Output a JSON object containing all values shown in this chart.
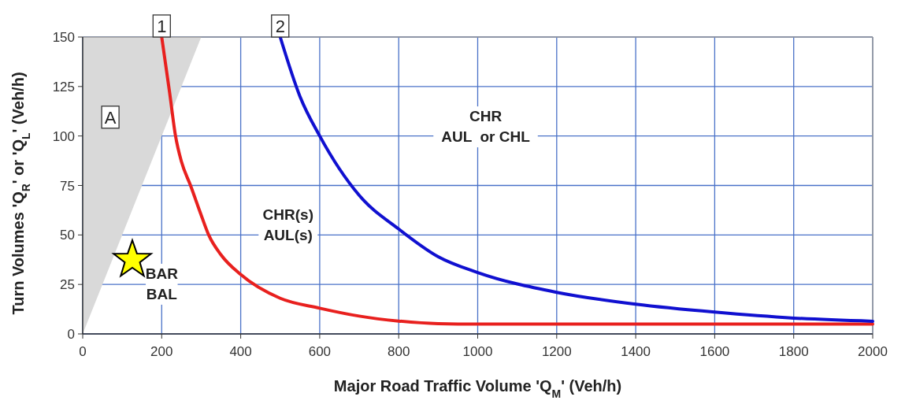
{
  "chart_data": {
    "type": "line",
    "xlabel": "Major Road Traffic Volume 'Q$_{M}$' (Veh/h)",
    "ylabel": "Turn Volumes 'Q$_{R}$' or 'Q$_{L}$' (Veh/h)",
    "xlim": [
      0,
      2000
    ],
    "ylim": [
      0,
      150
    ],
    "xticks": [
      0,
      200,
      400,
      600,
      800,
      1000,
      1200,
      1400,
      1600,
      1800,
      2000
    ],
    "yticks": [
      0,
      25,
      50,
      75,
      100,
      125,
      150
    ],
    "grid": true,
    "series": [
      {
        "color": "#e8201e",
        "x": [
          200,
          220,
          235,
          250,
          273,
          300,
          319,
          350,
          400,
          500,
          600,
          700,
          800,
          900,
          1000,
          1500,
          2000
        ],
        "values": [
          150,
          122,
          100,
          87,
          75,
          60,
          50,
          40,
          30,
          18,
          13,
          9,
          6.5,
          5.2,
          5,
          5,
          5
        ]
      },
      {
        "color": "#1010d0",
        "x": [
          500,
          550,
          600,
          700,
          800,
          900,
          1000,
          1200,
          1400,
          1600,
          1800,
          2000
        ],
        "values": [
          150,
          120,
          100,
          70,
          53,
          39,
          31,
          21,
          15,
          11,
          8,
          6.4
        ]
      }
    ],
    "annotations": [
      {
        "text": "1",
        "x": 200,
        "y": 150
      },
      {
        "text": "2",
        "x": 500,
        "y": 150
      },
      "A",
      "BAR\nBAL",
      "CHR(s)\nAUL(s)",
      "CHR\nAUL  or CHL"
    ]
  }
}
